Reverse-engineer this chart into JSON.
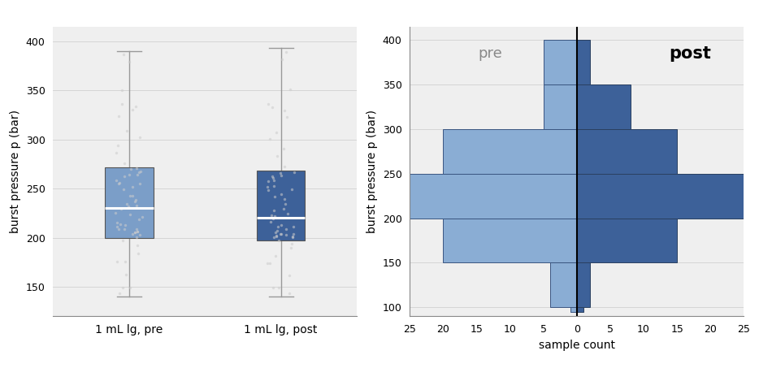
{
  "boxplot": {
    "pre": {
      "whisker_low": 140,
      "q1": 200,
      "median": 230,
      "q3": 272,
      "whisker_high": 390,
      "color": "#7b9ec8",
      "label": "1 mL lg, pre"
    },
    "post": {
      "whisker_low": 140,
      "q1": 197,
      "median": 220,
      "q3": 268,
      "whisker_high": 393,
      "color": "#3d6199",
      "label": "1 mL lg, post"
    },
    "ylabel": "burst pressure p (bar)",
    "ylim": [
      120,
      415
    ],
    "yticks": [
      150,
      200,
      250,
      300,
      350,
      400
    ],
    "background": "#efefef"
  },
  "histogram": {
    "bins": [
      {
        "ylow": 95,
        "yhigh": 100,
        "pre_count": 1,
        "post_count": 1
      },
      {
        "ylow": 100,
        "yhigh": 150,
        "pre_count": 4,
        "post_count": 2
      },
      {
        "ylow": 150,
        "yhigh": 200,
        "pre_count": 20,
        "post_count": 15
      },
      {
        "ylow": 200,
        "yhigh": 250,
        "pre_count": 25,
        "post_count": 25
      },
      {
        "ylow": 250,
        "yhigh": 300,
        "pre_count": 20,
        "post_count": 15
      },
      {
        "ylow": 300,
        "yhigh": 350,
        "pre_count": 5,
        "post_count": 8
      },
      {
        "ylow": 350,
        "yhigh": 400,
        "pre_count": 5,
        "post_count": 2
      }
    ],
    "pre_color": "#8aadd4",
    "post_color": "#3d6199",
    "pre_label": "pre",
    "post_label": "post",
    "ylabel": "burst pressure p (bar)",
    "xlabel": "sample count",
    "ylim": [
      90,
      415
    ],
    "xlim": [
      -25,
      25
    ],
    "yticks": [
      100,
      150,
      200,
      250,
      300,
      350,
      400
    ],
    "xticks": [
      -25,
      -20,
      -15,
      -10,
      -5,
      0,
      5,
      10,
      15,
      20,
      25
    ],
    "xticklabels": [
      "25",
      "20",
      "15",
      "10",
      "5",
      "0",
      "5",
      "10",
      "15",
      "20",
      "25"
    ],
    "background": "#efefef"
  },
  "pre_jitter_n": 60,
  "post_jitter_n": 60
}
